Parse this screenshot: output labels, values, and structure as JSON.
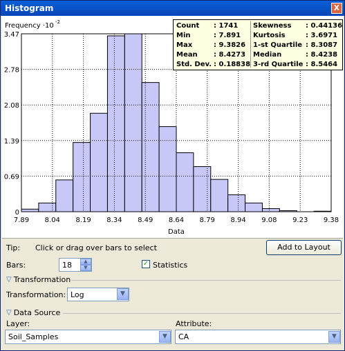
{
  "window": {
    "title": "Histogram",
    "close_symbol": "X"
  },
  "stats": {
    "left": [
      {
        "label": "Count",
        "value": ": 1741"
      },
      {
        "label": "Min",
        "value": ": 7.891"
      },
      {
        "label": "Max",
        "value": ": 9.3826"
      },
      {
        "label": "Mean",
        "value": ": 8.4273"
      },
      {
        "label": "Std. Dev.",
        "value": ": 0.18838"
      }
    ],
    "right": [
      {
        "label": "Skewness",
        "value": ": 0.44136"
      },
      {
        "label": "Kurtosis",
        "value": ": 3.6971"
      },
      {
        "label": "1-st Quartile",
        "value": ": 8.3087"
      },
      {
        "label": "Median",
        "value": ": 8.4238"
      },
      {
        "label": "3-rd Quartile",
        "value": ": 8.5464"
      }
    ]
  },
  "chart_data": {
    "type": "bar",
    "title": "",
    "ylabel_main": "Frequency",
    "ylabel_exp": "10",
    "ylabel_power": "-2",
    "xlabel": "Data",
    "x_ticks": [
      "7.89",
      "8.04",
      "8.19",
      "8.34",
      "8.49",
      "8.64",
      "8.79",
      "8.94",
      "9.08",
      "9.23",
      "9.38"
    ],
    "y_ticks": [
      "0",
      "0.69",
      "1.39",
      "2.08",
      "2.78",
      "3.47"
    ],
    "ylim": [
      0,
      3.47
    ],
    "xlim": [
      7.891,
      9.3826
    ],
    "bins": 18,
    "bin_values": [
      0.05,
      0.17,
      0.62,
      1.35,
      1.92,
      3.43,
      3.47,
      2.52,
      1.66,
      1.15,
      0.88,
      0.63,
      0.33,
      0.17,
      0.06,
      0.02,
      0.0,
      0.01
    ],
    "bar_color": "#c8c8f8",
    "grid": true
  },
  "controls": {
    "tip_label": "Tip:",
    "tip_text": "Click or drag over bars to select",
    "add_to_layout": "Add to Layout",
    "bars_label": "Bars:",
    "bars_value": "18",
    "statistics_label": "Statistics",
    "statistics_checked": "✓",
    "transformation_section": "Transformation",
    "transformation_label": "Transformation:",
    "transformation_value": "Log",
    "data_source_section": "Data Source",
    "layer_label": "Layer:",
    "layer_value": "Soil_Samples",
    "attribute_label": "Attribute:",
    "attribute_value": "CA"
  }
}
